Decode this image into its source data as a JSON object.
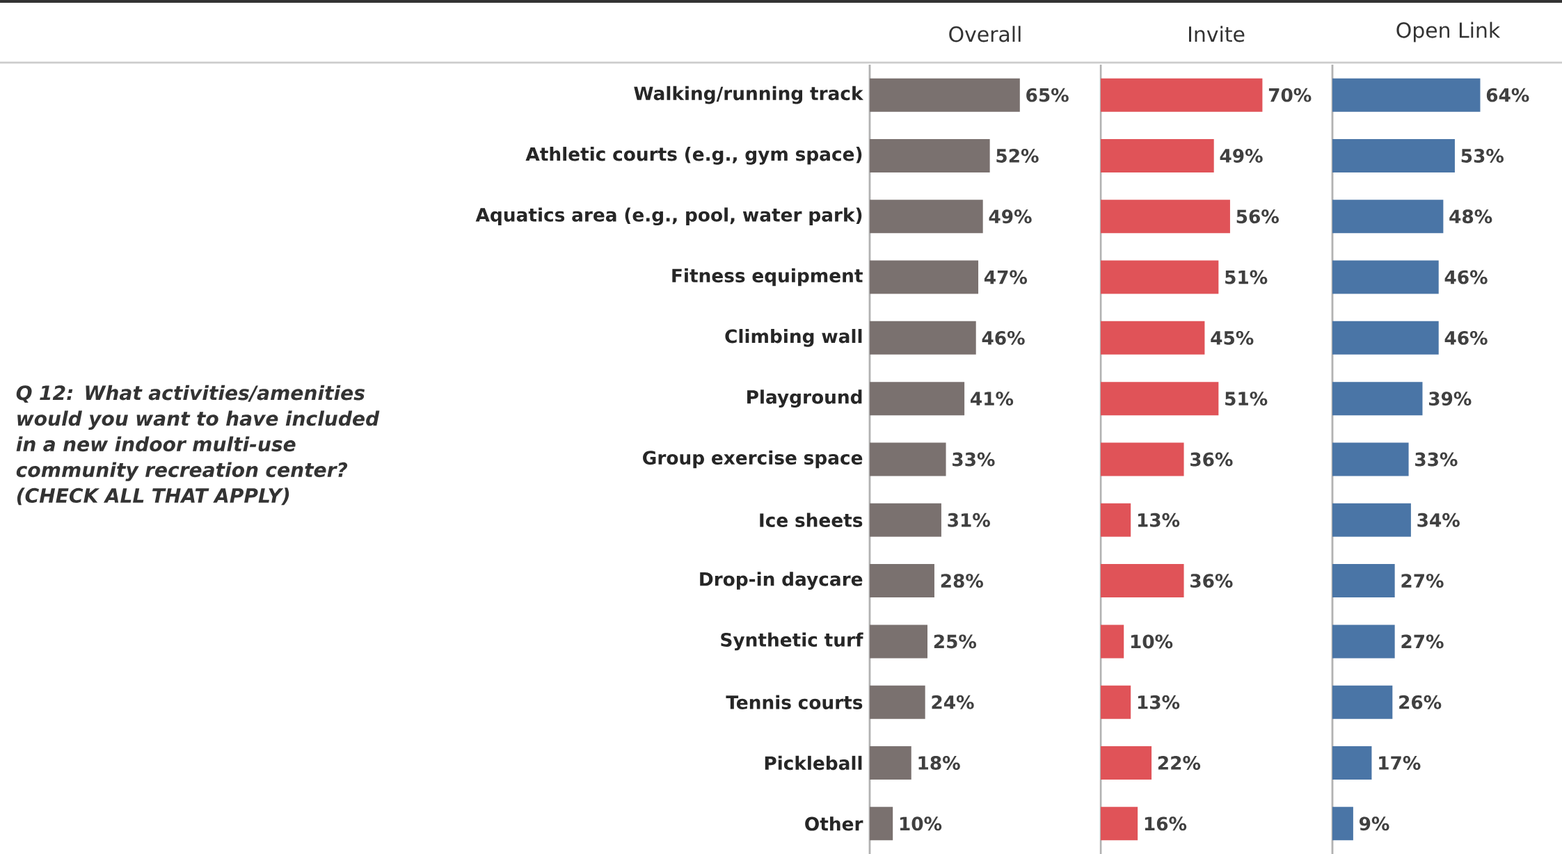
{
  "chart_data": [
    {
      "type": "bar",
      "orientation": "horizontal",
      "title": "Overall",
      "categories": [
        "Walking/running track",
        "Athletic courts (e.g., gym space)",
        "Aquatics area (e.g., pool, water park)",
        "Fitness equipment",
        "Climbing wall",
        "Playground",
        "Group exercise space",
        "Ice sheets",
        "Drop-in daycare",
        "Synthetic turf",
        "Tennis courts",
        "Pickleball",
        "Other"
      ],
      "values": [
        65,
        52,
        49,
        47,
        46,
        41,
        33,
        31,
        28,
        25,
        24,
        18,
        10
      ],
      "value_labels": [
        "65%",
        "52%",
        "49%",
        "47%",
        "46%",
        "41%",
        "33%",
        "31%",
        "28%",
        "25%",
        "24%",
        "18%",
        "10%"
      ],
      "color": "#7a716f",
      "tick_labels": "y",
      "annotations": [
        "Q 12: What activities/amenities would you want to have included in a new indoor multi-use community recreation center? (CHECK ALL THAT APPLY)"
      ]
    },
    {
      "type": "bar",
      "orientation": "horizontal",
      "title": "Invite",
      "values": [
        70,
        49,
        56,
        51,
        45,
        51,
        36,
        13,
        36,
        10,
        13,
        22,
        16
      ],
      "value_labels": [
        "70%",
        "49%",
        "56%",
        "51%",
        "45%",
        "51%",
        "36%",
        "13%",
        "36%",
        "10%",
        "13%",
        "22%",
        "16%"
      ],
      "color": "#e05358",
      "tick_labels": false
    },
    {
      "type": "bar",
      "orientation": "horizontal",
      "title": "Open Link",
      "values": [
        64,
        53,
        48,
        46,
        46,
        39,
        33,
        34,
        27,
        27,
        26,
        17,
        9
      ],
      "value_labels": [
        "64%",
        "53%",
        "48%",
        "46%",
        "46%",
        "39%",
        "33%",
        "34%",
        "27%",
        "27%",
        "26%",
        "17%",
        "9%"
      ],
      "color": "#4a75a6",
      "tick_labels": false
    }
  ]
}
